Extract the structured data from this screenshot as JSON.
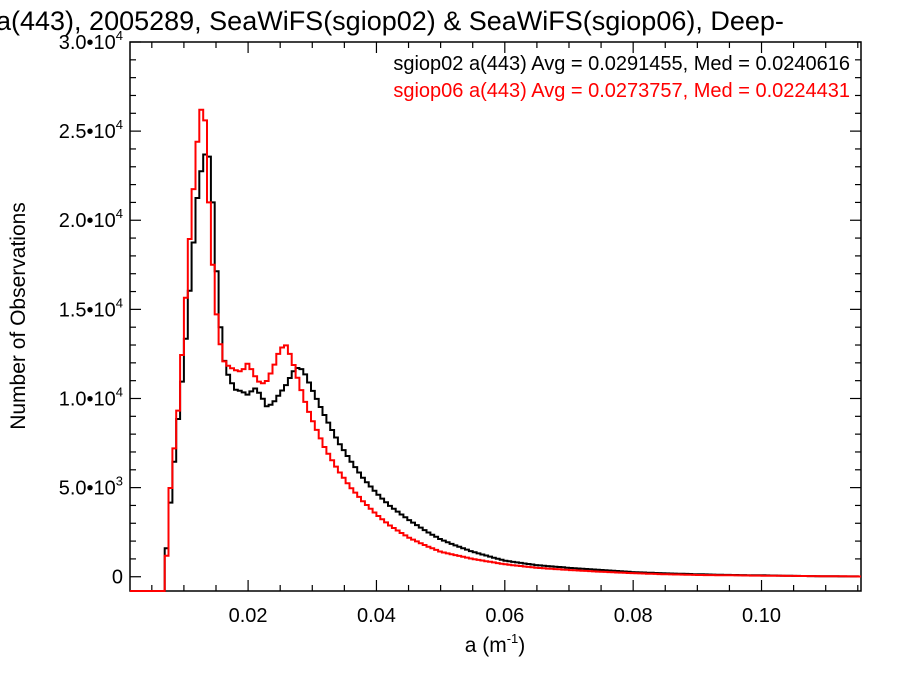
{
  "chart_data": {
    "type": "line",
    "title": "a(443), 2005289, SeaWiFS(sgiop02) & SeaWiFS(sgiop06), Deep-",
    "xlabel": "a (m",
    "xlabel_sup": "-1",
    "xlabel_close": ")",
    "ylabel": "Number of Observations",
    "xlim": [
      0.0016,
      0.1155
    ],
    "ylim": [
      -800,
      30000
    ],
    "x_ticks": [
      {
        "value": 0.02,
        "label": "0.02"
      },
      {
        "value": 0.04,
        "label": "0.04"
      },
      {
        "value": 0.06,
        "label": "0.06"
      },
      {
        "value": 0.08,
        "label": "0.08"
      },
      {
        "value": 0.1,
        "label": "0.10"
      }
    ],
    "y_ticks": [
      {
        "value": 0,
        "mantissa": "0",
        "exp": ""
      },
      {
        "value": 5000,
        "mantissa": "5.0•10",
        "exp": "3"
      },
      {
        "value": 10000,
        "mantissa": "1.0•10",
        "exp": "4"
      },
      {
        "value": 15000,
        "mantissa": "1.5•10",
        "exp": "4"
      },
      {
        "value": 20000,
        "mantissa": "2.0•10",
        "exp": "4"
      },
      {
        "value": 25000,
        "mantissa": "2.5•10",
        "exp": "4"
      },
      {
        "value": 30000,
        "mantissa": "3.0•10",
        "exp": "4"
      }
    ],
    "legend_placement": "top-right",
    "grid": false,
    "series": [
      {
        "name": "sgiop02 a(443) Avg = 0.0291455, Med = 0.0240616",
        "color": "#000000",
        "x": [
          0.0016,
          0.007,
          0.0075,
          0.008,
          0.009,
          0.01,
          0.011,
          0.012,
          0.013,
          0.0138,
          0.0145,
          0.0152,
          0.016,
          0.017,
          0.018,
          0.019,
          0.02,
          0.021,
          0.022,
          0.023,
          0.024,
          0.025,
          0.026,
          0.027,
          0.028,
          0.029,
          0.03,
          0.032,
          0.034,
          0.036,
          0.038,
          0.04,
          0.042,
          0.045,
          0.048,
          0.05,
          0.052,
          0.055,
          0.06,
          0.065,
          0.07,
          0.075,
          0.08,
          0.085,
          0.09,
          0.095,
          0.1,
          0.105,
          0.11,
          0.1155
        ],
        "y": [
          -800,
          -800,
          3200,
          4400,
          8500,
          12000,
          16500,
          21000,
          23500,
          24000,
          21000,
          16500,
          12500,
          11200,
          10500,
          10400,
          10200,
          10600,
          10200,
          9500,
          9800,
          10300,
          10800,
          11500,
          11800,
          11300,
          10500,
          9000,
          7600,
          6500,
          5500,
          4700,
          4000,
          3200,
          2500,
          2100,
          1800,
          1400,
          900,
          650,
          500,
          380,
          260,
          190,
          140,
          100,
          80,
          50,
          25,
          15
        ]
      },
      {
        "name": "sgiop06 a(443) Avg = 0.0273757, Med = 0.0224431",
        "color": "#ff0000",
        "x": [
          0.0016,
          0.007,
          0.0075,
          0.008,
          0.009,
          0.01,
          0.011,
          0.012,
          0.0125,
          0.013,
          0.0135,
          0.014,
          0.015,
          0.016,
          0.017,
          0.018,
          0.019,
          0.02,
          0.021,
          0.022,
          0.023,
          0.024,
          0.025,
          0.026,
          0.027,
          0.028,
          0.029,
          0.03,
          0.032,
          0.034,
          0.036,
          0.038,
          0.04,
          0.042,
          0.045,
          0.048,
          0.05,
          0.055,
          0.06,
          0.065,
          0.07,
          0.075,
          0.08,
          0.085,
          0.09,
          0.1,
          0.11,
          0.1155
        ],
        "y": [
          -800,
          -800,
          2500,
          5600,
          8800,
          14000,
          19500,
          24000,
          26000,
          26500,
          25000,
          20000,
          15000,
          12200,
          11800,
          11600,
          11500,
          12000,
          11300,
          10800,
          11000,
          11800,
          12800,
          13000,
          12000,
          10800,
          9700,
          8800,
          7200,
          6000,
          5000,
          4200,
          3500,
          2900,
          2200,
          1700,
          1400,
          1000,
          700,
          500,
          380,
          280,
          200,
          140,
          100,
          60,
          30,
          15
        ]
      }
    ]
  }
}
